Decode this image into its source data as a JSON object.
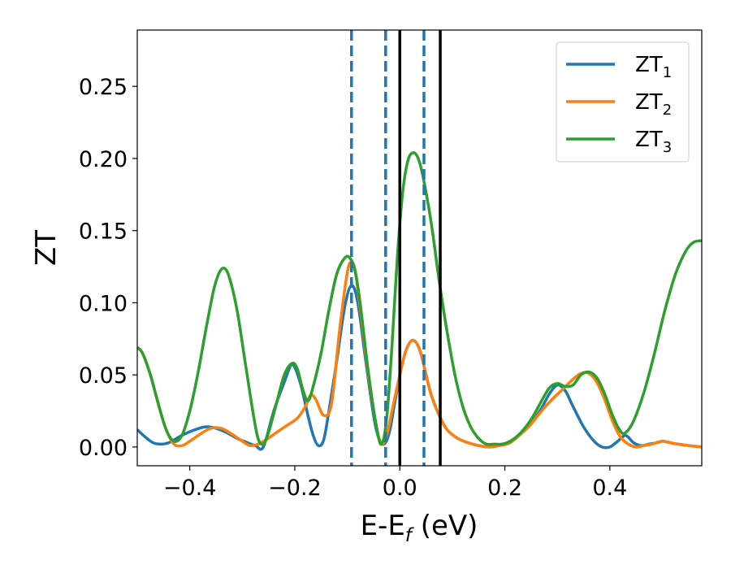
{
  "chart_data": {
    "type": "line",
    "xlabel": {
      "base": "E-E",
      "sub": "f",
      "suffix": " (eV)"
    },
    "ylabel": "ZT",
    "xlim": [
      -0.5,
      0.575
    ],
    "ylim": [
      -0.013,
      0.289
    ],
    "xticks": [
      {
        "value": -0.4,
        "label": "−0.4"
      },
      {
        "value": -0.2,
        "label": "−0.2"
      },
      {
        "value": 0.0,
        "label": "0.0"
      },
      {
        "value": 0.2,
        "label": "0.2"
      },
      {
        "value": 0.4,
        "label": "0.4"
      }
    ],
    "yticks": [
      {
        "value": 0.0,
        "label": "0.00"
      },
      {
        "value": 0.05,
        "label": "0.05"
      },
      {
        "value": 0.1,
        "label": "0.10"
      },
      {
        "value": 0.15,
        "label": "0.15"
      },
      {
        "value": 0.2,
        "label": "0.20"
      },
      {
        "value": 0.25,
        "label": "0.25"
      }
    ],
    "legend": {
      "position": "top-right"
    },
    "vlines": [
      {
        "x": -0.092,
        "style": "dashed",
        "color": "#1f77b4"
      },
      {
        "x": -0.027,
        "style": "dashed",
        "color": "#1f77b4"
      },
      {
        "x": 0.046,
        "style": "dashed",
        "color": "#1f77b4"
      },
      {
        "x": 0.0,
        "style": "solid",
        "color": "#000000"
      },
      {
        "x": 0.077,
        "style": "solid",
        "color": "#000000"
      }
    ],
    "series": [
      {
        "name": "ZT",
        "sub": "1",
        "color": "#1f77b4",
        "points": [
          [
            -0.5,
            0.012
          ],
          [
            -0.485,
            0.007
          ],
          [
            -0.47,
            0.003
          ],
          [
            -0.455,
            0.002
          ],
          [
            -0.44,
            0.003
          ],
          [
            -0.425,
            0.006
          ],
          [
            -0.41,
            0.009
          ],
          [
            -0.39,
            0.012
          ],
          [
            -0.37,
            0.014
          ],
          [
            -0.35,
            0.013
          ],
          [
            -0.33,
            0.01
          ],
          [
            -0.31,
            0.006
          ],
          [
            -0.29,
            0.003
          ],
          [
            -0.275,
            0.001
          ],
          [
            -0.26,
            0.0
          ],
          [
            -0.24,
            0.025
          ],
          [
            -0.22,
            0.045
          ],
          [
            -0.205,
            0.057
          ],
          [
            -0.19,
            0.045
          ],
          [
            -0.175,
            0.022
          ],
          [
            -0.165,
            0.008
          ],
          [
            -0.155,
            0.001
          ],
          [
            -0.145,
            0.005
          ],
          [
            -0.135,
            0.025
          ],
          [
            -0.12,
            0.06
          ],
          [
            -0.105,
            0.097
          ],
          [
            -0.092,
            0.112
          ],
          [
            -0.08,
            0.1
          ],
          [
            -0.065,
            0.06
          ],
          [
            -0.05,
            0.022
          ],
          [
            -0.04,
            0.006
          ],
          [
            -0.03,
            0.002
          ],
          [
            -0.02,
            0.01
          ],
          [
            -0.01,
            0.03
          ],
          [
            0.0,
            0.05
          ],
          [
            0.01,
            0.065
          ],
          [
            0.02,
            0.073
          ],
          [
            0.03,
            0.073
          ],
          [
            0.04,
            0.065
          ],
          [
            0.05,
            0.05
          ],
          [
            0.06,
            0.036
          ],
          [
            0.075,
            0.022
          ],
          [
            0.09,
            0.012
          ],
          [
            0.11,
            0.006
          ],
          [
            0.13,
            0.003
          ],
          [
            0.15,
            0.001
          ],
          [
            0.17,
            0.0
          ],
          [
            0.19,
            0.001
          ],
          [
            0.21,
            0.003
          ],
          [
            0.23,
            0.009
          ],
          [
            0.25,
            0.016
          ],
          [
            0.27,
            0.027
          ],
          [
            0.285,
            0.037
          ],
          [
            0.3,
            0.043
          ],
          [
            0.315,
            0.039
          ],
          [
            0.33,
            0.028
          ],
          [
            0.35,
            0.014
          ],
          [
            0.37,
            0.004
          ],
          [
            0.385,
            0.0
          ],
          [
            0.4,
            0.0
          ],
          [
            0.415,
            0.004
          ],
          [
            0.43,
            0.008
          ],
          [
            0.445,
            0.003
          ],
          [
            0.46,
            0.001
          ],
          [
            0.475,
            0.002
          ],
          [
            0.49,
            0.003
          ],
          [
            0.5,
            0.004
          ],
          [
            0.515,
            0.003
          ],
          [
            0.53,
            0.002
          ],
          [
            0.55,
            0.001
          ],
          [
            0.575,
            0.0
          ]
        ]
      },
      {
        "name": "ZT",
        "sub": "2",
        "color": "#ff7f0e",
        "points": [
          [
            -0.5,
            0.069
          ],
          [
            -0.49,
            0.065
          ],
          [
            -0.475,
            0.05
          ],
          [
            -0.46,
            0.03
          ],
          [
            -0.445,
            0.012
          ],
          [
            -0.43,
            0.002
          ],
          [
            -0.415,
            0.001
          ],
          [
            -0.4,
            0.004
          ],
          [
            -0.38,
            0.009
          ],
          [
            -0.36,
            0.013
          ],
          [
            -0.34,
            0.013
          ],
          [
            -0.32,
            0.009
          ],
          [
            -0.3,
            0.004
          ],
          [
            -0.285,
            0.001
          ],
          [
            -0.27,
            0.002
          ],
          [
            -0.255,
            0.005
          ],
          [
            -0.235,
            0.01
          ],
          [
            -0.215,
            0.015
          ],
          [
            -0.195,
            0.02
          ],
          [
            -0.18,
            0.028
          ],
          [
            -0.17,
            0.036
          ],
          [
            -0.16,
            0.033
          ],
          [
            -0.145,
            0.022
          ],
          [
            -0.13,
            0.03
          ],
          [
            -0.115,
            0.08
          ],
          [
            -0.1,
            0.121
          ],
          [
            -0.092,
            0.128
          ],
          [
            -0.085,
            0.122
          ],
          [
            -0.075,
            0.095
          ],
          [
            -0.06,
            0.05
          ],
          [
            -0.045,
            0.015
          ],
          [
            -0.035,
            0.002
          ],
          [
            -0.025,
            0.008
          ],
          [
            -0.015,
            0.025
          ],
          [
            0.0,
            0.05
          ],
          [
            0.01,
            0.065
          ],
          [
            0.02,
            0.073
          ],
          [
            0.03,
            0.073
          ],
          [
            0.04,
            0.065
          ],
          [
            0.05,
            0.05
          ],
          [
            0.06,
            0.036
          ],
          [
            0.075,
            0.022
          ],
          [
            0.09,
            0.012
          ],
          [
            0.11,
            0.006
          ],
          [
            0.13,
            0.003
          ],
          [
            0.15,
            0.001
          ],
          [
            0.17,
            0.0
          ],
          [
            0.19,
            0.001
          ],
          [
            0.21,
            0.003
          ],
          [
            0.23,
            0.009
          ],
          [
            0.25,
            0.016
          ],
          [
            0.27,
            0.025
          ],
          [
            0.29,
            0.033
          ],
          [
            0.31,
            0.04
          ],
          [
            0.33,
            0.047
          ],
          [
            0.345,
            0.051
          ],
          [
            0.36,
            0.051
          ],
          [
            0.375,
            0.045
          ],
          [
            0.39,
            0.033
          ],
          [
            0.405,
            0.018
          ],
          [
            0.42,
            0.007
          ],
          [
            0.435,
            0.002
          ],
          [
            0.45,
            0.0
          ],
          [
            0.465,
            0.001
          ],
          [
            0.48,
            0.002
          ],
          [
            0.5,
            0.004
          ],
          [
            0.515,
            0.003
          ],
          [
            0.53,
            0.002
          ],
          [
            0.55,
            0.001
          ],
          [
            0.575,
            0.0
          ]
        ]
      },
      {
        "name": "ZT",
        "sub": "3",
        "color": "#2ca02c",
        "points": [
          [
            -0.5,
            0.069
          ],
          [
            -0.49,
            0.065
          ],
          [
            -0.475,
            0.05
          ],
          [
            -0.46,
            0.03
          ],
          [
            -0.445,
            0.012
          ],
          [
            -0.43,
            0.004
          ],
          [
            -0.415,
            0.008
          ],
          [
            -0.4,
            0.025
          ],
          [
            -0.385,
            0.05
          ],
          [
            -0.37,
            0.08
          ],
          [
            -0.355,
            0.108
          ],
          [
            -0.345,
            0.12
          ],
          [
            -0.335,
            0.124
          ],
          [
            -0.325,
            0.118
          ],
          [
            -0.31,
            0.095
          ],
          [
            -0.295,
            0.06
          ],
          [
            -0.28,
            0.025
          ],
          [
            -0.27,
            0.006
          ],
          [
            -0.26,
            0.002
          ],
          [
            -0.25,
            0.01
          ],
          [
            -0.235,
            0.03
          ],
          [
            -0.22,
            0.05
          ],
          [
            -0.205,
            0.058
          ],
          [
            -0.195,
            0.054
          ],
          [
            -0.185,
            0.04
          ],
          [
            -0.175,
            0.032
          ],
          [
            -0.165,
            0.042
          ],
          [
            -0.15,
            0.065
          ],
          [
            -0.135,
            0.095
          ],
          [
            -0.12,
            0.12
          ],
          [
            -0.105,
            0.131
          ],
          [
            -0.095,
            0.131
          ],
          [
            -0.085,
            0.122
          ],
          [
            -0.075,
            0.098
          ],
          [
            -0.06,
            0.052
          ],
          [
            -0.045,
            0.015
          ],
          [
            -0.035,
            0.002
          ],
          [
            -0.025,
            0.02
          ],
          [
            -0.015,
            0.07
          ],
          [
            -0.005,
            0.13
          ],
          [
            0.005,
            0.175
          ],
          [
            0.015,
            0.198
          ],
          [
            0.025,
            0.204
          ],
          [
            0.035,
            0.2
          ],
          [
            0.045,
            0.186
          ],
          [
            0.06,
            0.155
          ],
          [
            0.075,
            0.115
          ],
          [
            0.09,
            0.08
          ],
          [
            0.105,
            0.05
          ],
          [
            0.12,
            0.028
          ],
          [
            0.135,
            0.014
          ],
          [
            0.15,
            0.006
          ],
          [
            0.165,
            0.002
          ],
          [
            0.18,
            0.002
          ],
          [
            0.195,
            0.002
          ],
          [
            0.21,
            0.004
          ],
          [
            0.225,
            0.008
          ],
          [
            0.24,
            0.014
          ],
          [
            0.255,
            0.022
          ],
          [
            0.27,
            0.032
          ],
          [
            0.285,
            0.041
          ],
          [
            0.3,
            0.044
          ],
          [
            0.315,
            0.042
          ],
          [
            0.33,
            0.043
          ],
          [
            0.345,
            0.05
          ],
          [
            0.36,
            0.052
          ],
          [
            0.375,
            0.048
          ],
          [
            0.39,
            0.037
          ],
          [
            0.405,
            0.022
          ],
          [
            0.42,
            0.011
          ],
          [
            0.43,
            0.01
          ],
          [
            0.445,
            0.018
          ],
          [
            0.465,
            0.038
          ],
          [
            0.485,
            0.065
          ],
          [
            0.505,
            0.095
          ],
          [
            0.525,
            0.12
          ],
          [
            0.545,
            0.136
          ],
          [
            0.56,
            0.142
          ],
          [
            0.575,
            0.143
          ]
        ]
      }
    ]
  }
}
